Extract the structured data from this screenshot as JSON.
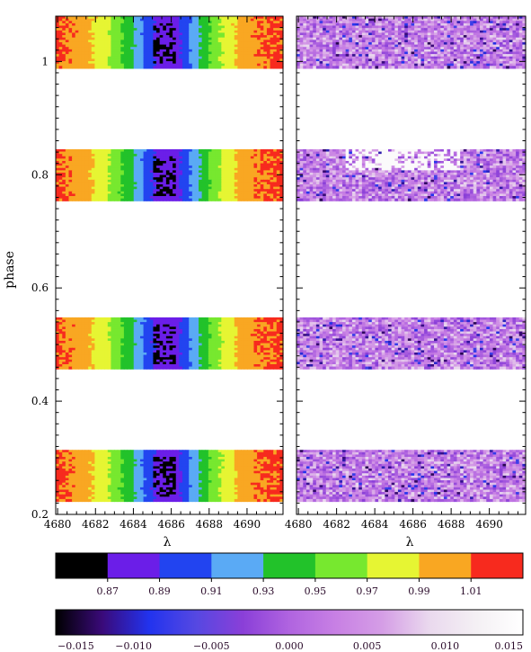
{
  "chart_data": [
    {
      "type": "heatmap",
      "panel": "left",
      "xlabel": "λ",
      "ylabel": "phase",
      "xlim": [
        4679.9,
        4691.9
      ],
      "ylim": [
        0.2,
        1.08
      ],
      "x_ticks": [
        4680,
        4682,
        4684,
        4686,
        4688,
        4690
      ],
      "x_tick_labels": [
        "4680",
        "4682",
        "4684",
        "4686",
        "4688",
        "4690"
      ],
      "y_ticks": [
        0.2,
        0.4,
        0.6,
        0.8,
        1.0
      ],
      "y_tick_labels": [
        "0.2",
        "0.4",
        "0.6",
        "0.8",
        "1"
      ],
      "phase_bands": [
        [
          0.223,
          0.314
        ],
        [
          0.457,
          0.548
        ],
        [
          0.754,
          0.845
        ],
        [
          0.988,
          1.08
        ]
      ],
      "profile": {
        "x": [
          4679.9,
          4680.8,
          4681.6,
          4682.1,
          4682.6,
          4683.2,
          4683.9,
          4684.4,
          4684.9,
          4685.4,
          4685.8,
          4686.2,
          4686.6,
          4687.1,
          4687.6,
          4688.1,
          4688.8,
          4689.4,
          4690.0,
          4691.9
        ],
        "value": [
          1.015,
          1.005,
          0.995,
          0.985,
          0.975,
          0.955,
          0.935,
          0.915,
          0.895,
          0.88,
          0.875,
          0.88,
          0.895,
          0.915,
          0.935,
          0.955,
          0.975,
          0.99,
          1.005,
          1.015
        ]
      }
    },
    {
      "type": "heatmap",
      "panel": "right",
      "xlabel": "λ",
      "xlim": [
        4679.9,
        4691.9
      ],
      "ylim": [
        0.2,
        1.08
      ],
      "x_ticks": [
        4680,
        4682,
        4684,
        4686,
        4688,
        4690
      ],
      "x_tick_labels": [
        "4680",
        "4682",
        "4684",
        "4686",
        "4688",
        "4690"
      ],
      "phase_bands": [
        [
          0.223,
          0.314
        ],
        [
          0.457,
          0.548
        ],
        [
          0.754,
          0.845
        ],
        [
          0.988,
          1.08
        ]
      ],
      "typical_value": 0.003,
      "value_range": [
        -0.015,
        0.015
      ]
    }
  ],
  "colorbars": [
    {
      "name": "normalized-flux",
      "segments": [
        "#000000",
        "#6b1ee8",
        "#2244f0",
        "#5aaaf5",
        "#22c22a",
        "#77e82f",
        "#e6f533",
        "#f9a722",
        "#f72a1e"
      ],
      "tick_values": [
        0.87,
        0.89,
        0.91,
        0.93,
        0.95,
        0.97,
        0.99,
        1.01
      ],
      "tick_labels": [
        "0.87",
        "0.89",
        "0.91",
        "0.93",
        "0.95",
        "0.97",
        "0.99",
        "1.01"
      ]
    },
    {
      "name": "residual",
      "stops": [
        "#000000",
        "#3a0a7a",
        "#2233ee",
        "#5548e2",
        "#8a3fd8",
        "#b064e0",
        "#c880e4",
        "#d59ee6",
        "#ead9ee",
        "#f4f0f4",
        "#ffffff"
      ],
      "tick_values": [
        -0.015,
        -0.01,
        -0.005,
        0.0,
        0.005,
        0.01,
        0.015
      ],
      "tick_labels": [
        "−0.015",
        "−0.010",
        "−0.005",
        "0.000",
        "0.005",
        "0.010",
        "0.015"
      ]
    }
  ]
}
